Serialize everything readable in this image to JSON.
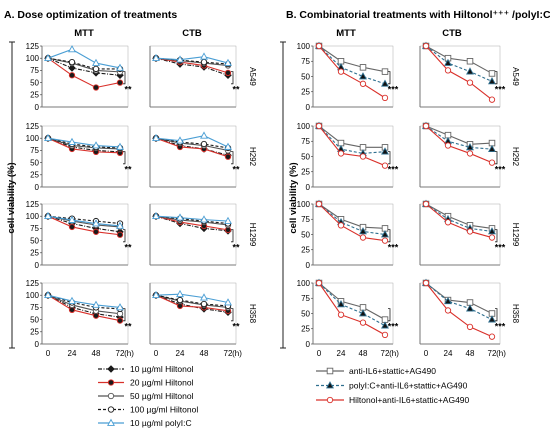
{
  "panel_titles": {
    "a": "A. Dose optimization of treatments",
    "b": "B. Combinatorial treatments with Hiltonol⁺⁺⁺ /polyI:C⁺⁺⁺"
  },
  "assay_headers": [
    "MTT",
    "CTB"
  ],
  "cell_lines": [
    "A549",
    "H292",
    "H1299",
    "H358"
  ],
  "y_axis_label": "cell viability (%)",
  "x_unit": "(h)",
  "significance_label": "**",
  "colors": {
    "black": "#1a1a1a",
    "red": "#d9302a",
    "gray": "#555555",
    "blue": "#4a9ed4"
  },
  "legend_a": [
    {
      "label": "10 µg/ml Hiltonol",
      "style": "dashdot-black-filled-diamond"
    },
    {
      "label": "20 µg/ml Hiltonol",
      "style": "solid-red-filled-circle"
    },
    {
      "label": "50 µg/ml Hiltonol",
      "style": "solid-black-open-circle"
    },
    {
      "label": "100 µg/ml Hiltonol",
      "style": "dashed-black-open-circle"
    },
    {
      "label": "10 µg/ml polyI:C",
      "style": "solid-blue-open-triangle"
    }
  ],
  "legend_b": [
    {
      "label": "anti-IL6+stattic+AG490",
      "style": "solid-gray-open-square"
    },
    {
      "label": "polyI:C+anti-IL6+stattic+AG490",
      "style": "dashed-teal-filled-triangle"
    },
    {
      "label": "Hiltonol+anti-IL6+stattic+AG490",
      "style": "solid-red-open-circle"
    }
  ],
  "chart_data": [
    {
      "type": "line",
      "title": "A. Dose optimization of treatments",
      "x": [
        0,
        24,
        48,
        72
      ],
      "xlabel": "(h)",
      "ylabel": "cell viability (%)",
      "ylim": [
        0,
        125
      ],
      "yticks": [
        0,
        25,
        50,
        75,
        100,
        125
      ],
      "grid": false,
      "subplots": [
        {
          "row": "A549",
          "col": "MTT",
          "series": [
            {
              "name": "10 µg/ml Hiltonol",
              "values": [
                100,
                80,
                70,
                65
              ]
            },
            {
              "name": "20 µg/ml Hiltonol",
              "values": [
                100,
                65,
                40,
                50
              ]
            },
            {
              "name": "50 µg/ml Hiltonol",
              "values": [
                100,
                90,
                75,
                72
              ]
            },
            {
              "name": "100 µg/ml Hiltonol",
              "values": [
                100,
                92,
                78,
                78
              ]
            },
            {
              "name": "10 µg/ml polyI:C",
              "values": [
                100,
                118,
                90,
                80
              ]
            }
          ]
        },
        {
          "row": "A549",
          "col": "CTB",
          "series": [
            {
              "name": "10 µg/ml Hiltonol",
              "values": [
                100,
                88,
                82,
                65
              ]
            },
            {
              "name": "20 µg/ml Hiltonol",
              "values": [
                100,
                92,
                85,
                70
              ]
            },
            {
              "name": "50 µg/ml Hiltonol",
              "values": [
                100,
                95,
                90,
                85
              ]
            },
            {
              "name": "100 µg/ml Hiltonol",
              "values": [
                100,
                96,
                92,
                88
              ]
            },
            {
              "name": "10 µg/ml polyI:C",
              "values": [
                100,
                97,
                103,
                90
              ]
            }
          ]
        },
        {
          "row": "H292",
          "col": "MTT",
          "series": [
            {
              "name": "10 µg/ml Hiltonol",
              "values": [
                100,
                82,
                75,
                72
              ]
            },
            {
              "name": "20 µg/ml Hiltonol",
              "values": [
                100,
                78,
                72,
                70
              ]
            },
            {
              "name": "50 µg/ml Hiltonol",
              "values": [
                100,
                85,
                80,
                78
              ]
            },
            {
              "name": "100 µg/ml Hiltonol",
              "values": [
                100,
                88,
                82,
                80
              ]
            },
            {
              "name": "10 µg/ml polyI:C",
              "values": [
                100,
                92,
                85,
                82
              ]
            }
          ]
        },
        {
          "row": "H292",
          "col": "CTB",
          "series": [
            {
              "name": "10 µg/ml Hiltonol",
              "values": [
                100,
                85,
                78,
                65
              ]
            },
            {
              "name": "20 µg/ml Hiltonol",
              "values": [
                100,
                82,
                78,
                62
              ]
            },
            {
              "name": "50 µg/ml Hiltonol",
              "values": [
                100,
                90,
                85,
                75
              ]
            },
            {
              "name": "100 µg/ml Hiltonol",
              "values": [
                100,
                92,
                88,
                80
              ]
            },
            {
              "name": "10 µg/ml polyI:C",
              "values": [
                100,
                95,
                105,
                82
              ]
            }
          ]
        },
        {
          "row": "H1299",
          "col": "MTT",
          "series": [
            {
              "name": "10 µg/ml Hiltonol",
              "values": [
                100,
                85,
                75,
                68
              ]
            },
            {
              "name": "20 µg/ml Hiltonol",
              "values": [
                100,
                78,
                68,
                62
              ]
            },
            {
              "name": "50 µg/ml Hiltonol",
              "values": [
                100,
                90,
                82,
                78
              ]
            },
            {
              "name": "100 µg/ml Hiltonol",
              "values": [
                100,
                95,
                90,
                85
              ]
            },
            {
              "name": "10 µg/ml polyI:C",
              "values": [
                100,
                92,
                85,
                80
              ]
            }
          ]
        },
        {
          "row": "H1299",
          "col": "CTB",
          "series": [
            {
              "name": "10 µg/ml Hiltonol",
              "values": [
                100,
                85,
                75,
                70
              ]
            },
            {
              "name": "20 µg/ml Hiltonol",
              "values": [
                100,
                88,
                80,
                72
              ]
            },
            {
              "name": "50 µg/ml Hiltonol",
              "values": [
                100,
                92,
                88,
                82
              ]
            },
            {
              "name": "100 µg/ml Hiltonol",
              "values": [
                100,
                95,
                90,
                85
              ]
            },
            {
              "name": "10 µg/ml polyI:C",
              "values": [
                100,
                97,
                93,
                90
              ]
            }
          ]
        },
        {
          "row": "H358",
          "col": "MTT",
          "series": [
            {
              "name": "10 µg/ml Hiltonol",
              "values": [
                100,
                75,
                62,
                55
              ]
            },
            {
              "name": "20 µg/ml Hiltonol",
              "values": [
                100,
                70,
                58,
                48
              ]
            },
            {
              "name": "50 µg/ml Hiltonol",
              "values": [
                100,
                80,
                68,
                62
              ]
            },
            {
              "name": "100 µg/ml Hiltonol",
              "values": [
                100,
                85,
                75,
                72
              ]
            },
            {
              "name": "10 µg/ml polyI:C",
              "values": [
                100,
                88,
                80,
                75
              ]
            }
          ]
        },
        {
          "row": "H358",
          "col": "CTB",
          "series": [
            {
              "name": "10 µg/ml Hiltonol",
              "values": [
                100,
                82,
                72,
                65
              ]
            },
            {
              "name": "20 µg/ml Hiltonol",
              "values": [
                100,
                78,
                75,
                68
              ]
            },
            {
              "name": "50 µg/ml Hiltonol",
              "values": [
                100,
                88,
                80,
                75
              ]
            },
            {
              "name": "100 µg/ml Hiltonol",
              "values": [
                100,
                90,
                82,
                78
              ]
            },
            {
              "name": "10 µg/ml polyI:C",
              "values": [
                100,
                102,
                95,
                85
              ]
            }
          ]
        }
      ]
    },
    {
      "type": "line",
      "title": "B. Combinatorial treatments with Hiltonol⁺⁺⁺ /polyI:C⁺⁺⁺",
      "x": [
        0,
        24,
        48,
        72
      ],
      "xlabel": "(h)",
      "ylabel": "cell viability (%)",
      "ylim": [
        0,
        100
      ],
      "yticks": [
        0,
        25,
        50,
        75,
        100
      ],
      "grid": false,
      "subplots": [
        {
          "row": "A549",
          "col": "MTT",
          "series": [
            {
              "name": "anti-IL6+stattic+AG490",
              "values": [
                100,
                75,
                65,
                58
              ]
            },
            {
              "name": "polyI:C+anti-IL6+stattic+AG490",
              "values": [
                100,
                65,
                50,
                38
              ]
            },
            {
              "name": "Hiltonol+anti-IL6+stattic+AG490",
              "values": [
                100,
                58,
                38,
                15
              ]
            }
          ]
        },
        {
          "row": "A549",
          "col": "CTB",
          "series": [
            {
              "name": "anti-IL6+stattic+AG490",
              "values": [
                100,
                80,
                75,
                55
              ]
            },
            {
              "name": "polyI:C+anti-IL6+stattic+AG490",
              "values": [
                100,
                72,
                58,
                42
              ]
            },
            {
              "name": "Hiltonol+anti-IL6+stattic+AG490",
              "values": [
                100,
                60,
                40,
                12
              ]
            }
          ]
        },
        {
          "row": "H292",
          "col": "MTT",
          "series": [
            {
              "name": "anti-IL6+stattic+AG490",
              "values": [
                100,
                72,
                65,
                65
              ]
            },
            {
              "name": "polyI:C+anti-IL6+stattic+AG490",
              "values": [
                100,
                62,
                55,
                58
              ]
            },
            {
              "name": "Hiltonol+anti-IL6+stattic+AG490",
              "values": [
                100,
                55,
                50,
                35
              ]
            }
          ]
        },
        {
          "row": "H292",
          "col": "CTB",
          "series": [
            {
              "name": "anti-IL6+stattic+AG490",
              "values": [
                100,
                85,
                70,
                72
              ]
            },
            {
              "name": "polyI:C+anti-IL6+stattic+AG490",
              "values": [
                100,
                75,
                65,
                62
              ]
            },
            {
              "name": "Hiltonol+anti-IL6+stattic+AG490",
              "values": [
                100,
                68,
                55,
                40
              ]
            }
          ]
        },
        {
          "row": "H1299",
          "col": "MTT",
          "series": [
            {
              "name": "anti-IL6+stattic+AG490",
              "values": [
                100,
                75,
                62,
                60
              ]
            },
            {
              "name": "polyI:C+anti-IL6+stattic+AG490",
              "values": [
                100,
                70,
                55,
                50
              ]
            },
            {
              "name": "Hiltonol+anti-IL6+stattic+AG490",
              "values": [
                100,
                65,
                45,
                40
              ]
            }
          ]
        },
        {
          "row": "H1299",
          "col": "CTB",
          "series": [
            {
              "name": "anti-IL6+stattic+AG490",
              "values": [
                100,
                80,
                65,
                60
              ]
            },
            {
              "name": "polyI:C+anti-IL6+stattic+AG490",
              "values": [
                100,
                75,
                60,
                55
              ]
            },
            {
              "name": "Hiltonol+anti-IL6+stattic+AG490",
              "values": [
                100,
                70,
                55,
                45
              ]
            }
          ]
        },
        {
          "row": "H358",
          "col": "MTT",
          "series": [
            {
              "name": "anti-IL6+stattic+AG490",
              "values": [
                100,
                70,
                60,
                40
              ]
            },
            {
              "name": "polyI:C+anti-IL6+stattic+AG490",
              "values": [
                100,
                65,
                50,
                30
              ]
            },
            {
              "name": "Hiltonol+anti-IL6+stattic+AG490",
              "values": [
                100,
                48,
                35,
                15
              ]
            }
          ]
        },
        {
          "row": "H358",
          "col": "CTB",
          "series": [
            {
              "name": "anti-IL6+stattic+AG490",
              "values": [
                100,
                72,
                68,
                50
              ]
            },
            {
              "name": "polyI:C+anti-IL6+stattic+AG490",
              "values": [
                100,
                70,
                58,
                40
              ]
            },
            {
              "name": "Hiltonol+anti-IL6+stattic+AG490",
              "values": [
                100,
                55,
                28,
                12
              ]
            }
          ]
        }
      ]
    }
  ]
}
